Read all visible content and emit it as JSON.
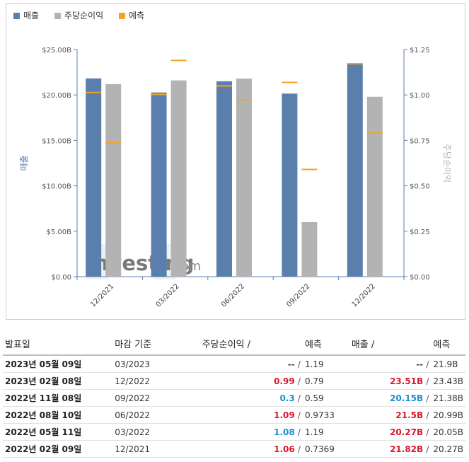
{
  "legend": {
    "revenue": {
      "label": "매출",
      "color": "#5b7fad"
    },
    "eps": {
      "label": "주당순이익",
      "color": "#b3b3b3"
    },
    "forecast": {
      "label": "예측",
      "color": "#f3a326"
    }
  },
  "chart_data": {
    "type": "bar",
    "categories": [
      "12/2021",
      "03/2022",
      "06/2022",
      "09/2022",
      "12/2022"
    ],
    "series": [
      {
        "name": "매출",
        "axis": "left",
        "unit": "B",
        "values": [
          21.82,
          20.27,
          21.5,
          20.15,
          23.51
        ],
        "forecast": [
          20.27,
          20.05,
          20.99,
          21.38,
          23.43
        ]
      },
      {
        "name": "주당순이익",
        "axis": "right",
        "values": [
          1.06,
          1.08,
          1.09,
          0.3,
          0.99
        ],
        "forecast": [
          0.7369,
          1.19,
          0.9733,
          0.59,
          0.79
        ]
      }
    ],
    "ylabel_left": "매출",
    "ylabel_right": "주당순이익",
    "ylim_left": [
      0,
      25
    ],
    "ylim_right": [
      0,
      1.25
    ],
    "yticks_left": [
      "$0.00",
      "$5.00B",
      "$10.00B",
      "$15.00B",
      "$20.00B",
      "$25.00B"
    ],
    "yticks_right": [
      "$0.00",
      "$0.25",
      "$0.50",
      "$0.75",
      "$1.00",
      "$1.25"
    ],
    "legend_position": "top-left",
    "grid": false
  },
  "watermark": {
    "brand": "Investing",
    "suffix": ".com"
  },
  "table": {
    "headers": {
      "date": "발표일",
      "period": "마감 기준",
      "eps": "주당순이익",
      "eps_forecast": "예측",
      "revenue": "매출",
      "revenue_forecast": "예측",
      "sep": "/"
    },
    "rows": [
      {
        "date": "2023년 05월 09일",
        "period": "03/2023",
        "eps": "--",
        "eps_forecast": "1.19",
        "revenue": "--",
        "revenue_forecast": "21.9B",
        "eps_class": "neu",
        "rev_class": "neu"
      },
      {
        "date": "2023년 02월 08일",
        "period": "12/2022",
        "eps": "0.99",
        "eps_forecast": "0.79",
        "revenue": "23.51B",
        "revenue_forecast": "23.43B",
        "eps_class": "pos",
        "rev_class": "pos"
      },
      {
        "date": "2022년 11월 08일",
        "period": "09/2022",
        "eps": "0.3",
        "eps_forecast": "0.59",
        "revenue": "20.15B",
        "revenue_forecast": "21.38B",
        "eps_class": "neg",
        "rev_class": "neg"
      },
      {
        "date": "2022년 08월 10일",
        "period": "06/2022",
        "eps": "1.09",
        "eps_forecast": "0.9733",
        "revenue": "21.5B",
        "revenue_forecast": "20.99B",
        "eps_class": "pos",
        "rev_class": "pos"
      },
      {
        "date": "2022년 05월 11일",
        "period": "03/2022",
        "eps": "1.08",
        "eps_forecast": "1.19",
        "revenue": "20.27B",
        "revenue_forecast": "20.05B",
        "eps_class": "neg",
        "rev_class": "pos"
      },
      {
        "date": "2022년 02월 09일",
        "period": "12/2021",
        "eps": "1.06",
        "eps_forecast": "0.7369",
        "revenue": "21.82B",
        "revenue_forecast": "20.27B",
        "eps_class": "pos",
        "rev_class": "pos"
      }
    ]
  }
}
